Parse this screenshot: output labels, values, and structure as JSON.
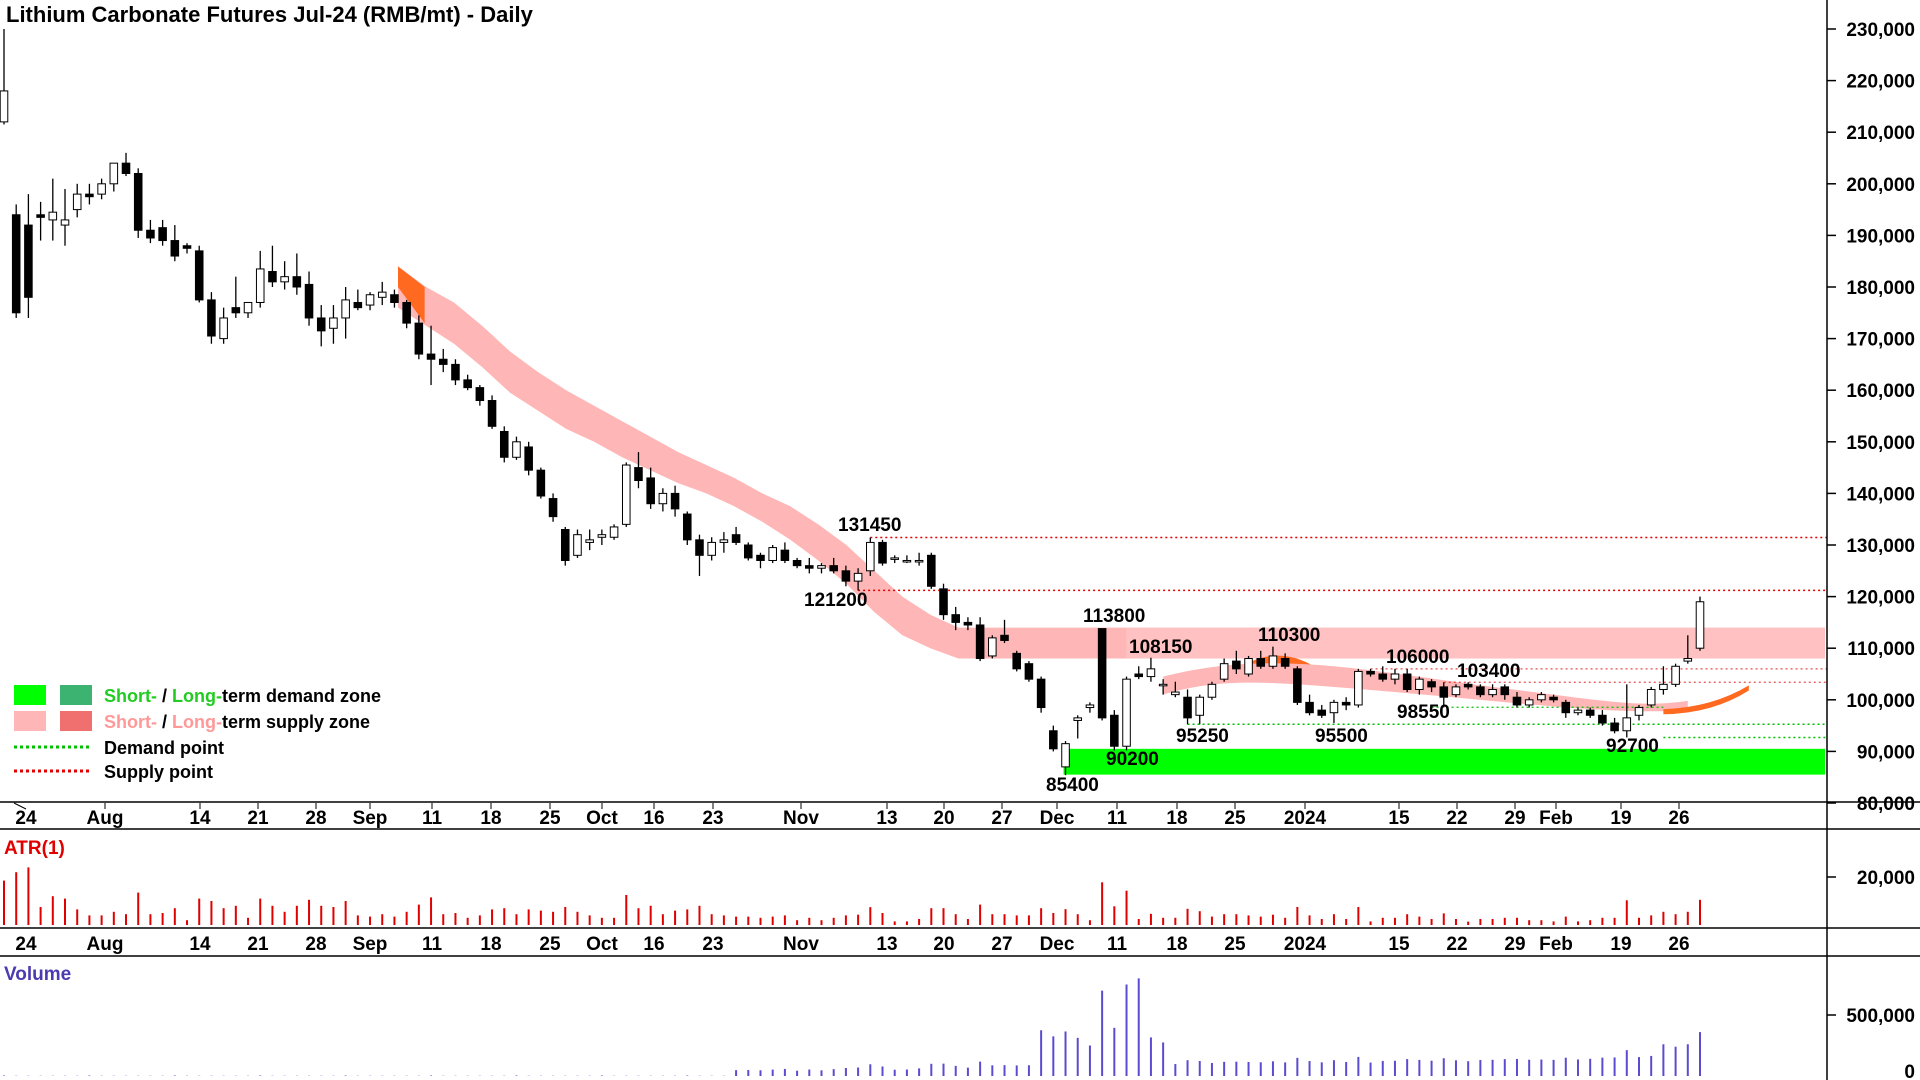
{
  "title": "Lithium Carbonate Futures Jul-24 (RMB/mt) - Daily",
  "colors": {
    "bull_body": "#ffffff",
    "bear_body": "#000000",
    "candle_outline": "#000000",
    "short_demand": "#00ff00",
    "long_demand": "#3cb371",
    "short_supply": "#ffb6b6",
    "long_supply": "#f07070",
    "supply_point": "#e00000",
    "demand_point": "#00c000",
    "atr": "#e00000",
    "volume": "#5b4bd0",
    "ribbon_orange": "#ff6a20",
    "legend_green_text": "#22cc22",
    "legend_pink_text": "#ff9999"
  },
  "x_axis_labels": [
    "24",
    "Aug",
    "14",
    "21",
    "28",
    "Sep",
    "11",
    "18",
    "25",
    "Oct",
    "16",
    "23",
    "Nov",
    "13",
    "20",
    "27",
    "Dec",
    "11",
    "18",
    "25",
    "2024",
    "15",
    "22",
    "29",
    "Feb",
    "19",
    "26"
  ],
  "legend": {
    "demand_short": "Short-",
    "demand_sep": " / ",
    "demand_long": "Long-",
    "demand_rest": "term demand zone",
    "supply_short": "Short-",
    "supply_sep": " / ",
    "supply_long": "Long-",
    "supply_rest": "term supply zone",
    "demand_point": "Demand point",
    "supply_point": "Supply point"
  },
  "price_labels": [
    "131450",
    "121200",
    "113800",
    "108150",
    "110300",
    "106000",
    "103400",
    "98550",
    "95250",
    "95500",
    "92700",
    "90200",
    "85400"
  ],
  "atr_title": "ATR(1)",
  "volume_title": "Volume",
  "chart_data": {
    "type": "candlestick",
    "title": "Lithium Carbonate Futures Jul-24 (RMB/mt) - Daily",
    "y_axis": {
      "ylim": [
        80000,
        232000
      ],
      "ticks": [
        "230,000",
        "220,000",
        "210,000",
        "200,000",
        "190,000",
        "180,000",
        "170,000",
        "160,000",
        "150,000",
        "140,000",
        "130,000",
        "120,000",
        "110,000",
        "100,000",
        "90,000",
        "80,000"
      ]
    },
    "candles": [
      [
        212000,
        230000,
        211500,
        218000
      ],
      [
        194000,
        196000,
        174000,
        175000
      ],
      [
        192000,
        198000,
        174000,
        178000
      ],
      [
        194000,
        196500,
        189000,
        193500
      ],
      [
        193000,
        201000,
        189000,
        194500
      ],
      [
        192000,
        199000,
        188000,
        193000
      ],
      [
        195000,
        200000,
        193500,
        198000
      ],
      [
        198000,
        200000,
        196000,
        197500
      ],
      [
        198000,
        201000,
        197000,
        200000
      ],
      [
        200000,
        204000,
        198500,
        204000
      ],
      [
        204000,
        206000,
        201500,
        202000
      ],
      [
        202000,
        203000,
        189500,
        191000
      ],
      [
        191000,
        193000,
        188500,
        189500
      ],
      [
        191500,
        193000,
        188000,
        189000
      ],
      [
        189000,
        192000,
        185000,
        186000
      ],
      [
        188000,
        188500,
        186500,
        187500
      ],
      [
        187000,
        188000,
        177000,
        177500
      ],
      [
        177500,
        179000,
        169000,
        170500
      ],
      [
        170000,
        176000,
        169000,
        174000
      ],
      [
        176000,
        182000,
        174000,
        175000
      ],
      [
        175000,
        177000,
        174000,
        177000
      ],
      [
        177000,
        187000,
        176000,
        183500
      ],
      [
        183000,
        188000,
        180000,
        181000
      ],
      [
        181000,
        185000,
        179500,
        182000
      ],
      [
        182000,
        186500,
        178500,
        180000
      ],
      [
        180500,
        183000,
        172500,
        174000
      ],
      [
        174000,
        176500,
        168500,
        171500
      ],
      [
        172000,
        176500,
        169000,
        174000
      ],
      [
        174000,
        180000,
        170000,
        177500
      ],
      [
        177000,
        179500,
        175500,
        176000
      ],
      [
        176500,
        179000,
        175500,
        178500
      ],
      [
        178000,
        181000,
        176500,
        179000
      ],
      [
        178500,
        179500,
        176000,
        177000
      ],
      [
        177000,
        177500,
        172000,
        173000
      ],
      [
        173000,
        174500,
        166000,
        167000
      ],
      [
        167000,
        172500,
        161000,
        166000
      ],
      [
        166000,
        168000,
        163500,
        165000
      ],
      [
        165000,
        166000,
        161000,
        162000
      ],
      [
        162000,
        163000,
        160000,
        160500
      ],
      [
        160500,
        161000,
        157000,
        158000
      ],
      [
        158000,
        159000,
        152500,
        153000
      ],
      [
        152000,
        153000,
        146000,
        147000
      ],
      [
        147000,
        151000,
        146500,
        150000
      ],
      [
        149000,
        150000,
        143500,
        144500
      ],
      [
        144500,
        145000,
        139000,
        139500
      ],
      [
        139000,
        140000,
        134500,
        135500
      ],
      [
        133000,
        133500,
        126000,
        127000
      ],
      [
        128000,
        133000,
        127500,
        132000
      ],
      [
        130500,
        133000,
        129000,
        131000
      ],
      [
        131500,
        133000,
        130000,
        132000
      ],
      [
        131500,
        134000,
        131000,
        133500
      ],
      [
        134000,
        146000,
        133500,
        145500
      ],
      [
        145000,
        148000,
        141000,
        142500
      ],
      [
        143000,
        145000,
        137000,
        138000
      ],
      [
        138000,
        141000,
        136500,
        140000
      ],
      [
        140000,
        141500,
        135500,
        137000
      ],
      [
        136000,
        136500,
        130000,
        131000
      ],
      [
        131000,
        132000,
        124000,
        128000
      ],
      [
        128000,
        131500,
        127000,
        130500
      ],
      [
        130500,
        132500,
        128500,
        131000
      ],
      [
        132000,
        133500,
        130000,
        130500
      ],
      [
        130000,
        130500,
        127000,
        127500
      ],
      [
        128000,
        128500,
        125500,
        127000
      ],
      [
        127000,
        130000,
        126500,
        129500
      ],
      [
        129000,
        130500,
        126500,
        127000
      ],
      [
        127000,
        127500,
        125500,
        126000
      ],
      [
        126000,
        127500,
        124500,
        125500
      ],
      [
        125500,
        126500,
        124500,
        126000
      ],
      [
        126000,
        127500,
        124500,
        125000
      ],
      [
        125000,
        126000,
        122000,
        123000
      ],
      [
        123000,
        125500,
        121200,
        124500
      ],
      [
        125000,
        131450,
        124000,
        130500
      ],
      [
        130500,
        131000,
        126000,
        126500
      ],
      [
        127500,
        128000,
        126500,
        127500
      ],
      [
        127000,
        128000,
        126500,
        127000
      ],
      [
        127000,
        128500,
        126000,
        127000
      ],
      [
        128000,
        128500,
        121500,
        122000
      ],
      [
        121500,
        122500,
        115500,
        116500
      ],
      [
        116500,
        118000,
        113500,
        115000
      ],
      [
        115000,
        116000,
        113500,
        114500
      ],
      [
        114500,
        116000,
        107500,
        108000
      ],
      [
        108500,
        112500,
        108000,
        112000
      ],
      [
        112500,
        115500,
        111000,
        111500
      ],
      [
        109000,
        109500,
        105500,
        106000
      ],
      [
        107000,
        107500,
        103500,
        104000
      ],
      [
        104000,
        104500,
        97500,
        98500
      ],
      [
        94000,
        95000,
        90000,
        90500
      ],
      [
        87000,
        92000,
        85400,
        91500
      ],
      [
        96000,
        97000,
        92500,
        96500
      ],
      [
        98500,
        99500,
        97500,
        99000
      ],
      [
        113800,
        113800,
        96000,
        96500
      ],
      [
        97000,
        98000,
        90200,
        91000
      ],
      [
        91000,
        104500,
        90200,
        104000
      ],
      [
        105000,
        106500,
        104000,
        104500
      ],
      [
        104500,
        108150,
        103500,
        106000
      ],
      [
        103000,
        104000,
        101000,
        103000
      ],
      [
        101000,
        103500,
        100500,
        101500
      ],
      [
        100500,
        102000,
        95250,
        96500
      ],
      [
        97000,
        101000,
        95250,
        100500
      ],
      [
        100500,
        103500,
        100000,
        103000
      ],
      [
        104000,
        108000,
        103500,
        107000
      ],
      [
        107500,
        109500,
        105000,
        106000
      ],
      [
        105000,
        108500,
        104500,
        108000
      ],
      [
        108000,
        109500,
        106000,
        106500
      ],
      [
        106500,
        110300,
        106000,
        108500
      ],
      [
        108000,
        109000,
        106000,
        106500
      ],
      [
        106000,
        106500,
        99000,
        99500
      ],
      [
        99500,
        101000,
        97000,
        97500
      ],
      [
        98000,
        99000,
        96500,
        97000
      ],
      [
        97500,
        100000,
        95500,
        99500
      ],
      [
        99500,
        100500,
        98000,
        99000
      ],
      [
        99000,
        106000,
        98500,
        105500
      ],
      [
        105500,
        106000,
        104500,
        105000
      ],
      [
        105000,
        106500,
        103500,
        104000
      ],
      [
        104000,
        106000,
        103000,
        105000
      ],
      [
        105000,
        106000,
        101500,
        102000
      ],
      [
        102000,
        104500,
        101000,
        104000
      ],
      [
        103500,
        104000,
        101500,
        102500
      ],
      [
        102500,
        103400,
        98550,
        100500
      ],
      [
        101000,
        103000,
        100500,
        102500
      ],
      [
        103000,
        103400,
        102000,
        102500
      ],
      [
        102500,
        103000,
        100500,
        101000
      ],
      [
        101000,
        103000,
        100500,
        102000
      ],
      [
        102500,
        103000,
        100000,
        101000
      ],
      [
        100500,
        101500,
        98500,
        99000
      ],
      [
        99000,
        100500,
        98500,
        100000
      ],
      [
        100000,
        101500,
        99500,
        101000
      ],
      [
        100500,
        101000,
        99500,
        100000
      ],
      [
        99500,
        100000,
        96500,
        97500
      ],
      [
        97500,
        98500,
        97000,
        98000
      ],
      [
        98000,
        98500,
        96500,
        97000
      ],
      [
        97000,
        98000,
        95000,
        95500
      ],
      [
        95500,
        96500,
        93500,
        94000
      ],
      [
        94000,
        103000,
        92700,
        96500
      ],
      [
        97000,
        99000,
        96000,
        98500
      ],
      [
        99000,
        102500,
        98500,
        102000
      ],
      [
        102000,
        106500,
        101000,
        103000
      ],
      [
        103000,
        107000,
        102500,
        106500
      ],
      [
        107500,
        112500,
        107000,
        108000
      ],
      [
        110000,
        120000,
        109500,
        119000
      ]
    ],
    "short_term_supply_ribbon": [
      [
        184000,
        176000
      ],
      [
        180000,
        172500
      ],
      [
        177000,
        169000
      ],
      [
        172500,
        164500
      ],
      [
        167500,
        159500
      ],
      [
        163500,
        156000
      ],
      [
        160000,
        152500
      ],
      [
        157000,
        150000
      ],
      [
        154000,
        147000
      ],
      [
        151000,
        144500
      ],
      [
        148000,
        142000
      ],
      [
        145500,
        140000
      ],
      [
        143000,
        137500
      ],
      [
        140000,
        134500
      ],
      [
        137500,
        131000
      ],
      [
        134000,
        127000
      ],
      [
        130000,
        122500
      ],
      [
        125000,
        117000
      ],
      [
        120000,
        112500
      ],
      [
        116500,
        110000
      ],
      [
        114000,
        108000
      ],
      [
        114000,
        108000
      ],
      [
        114000,
        108000
      ],
      [
        114000,
        108000
      ],
      [
        114000,
        108000
      ],
      [
        114000,
        108000
      ],
      [
        114000,
        108000
      ]
    ],
    "long_term_supply_zone": [
      108000,
      114000
    ],
    "long_supply_orange_segments": [
      {
        "x_start": 0,
        "x_end": 1,
        "top": [
          184000,
          180000
        ],
        "bottom": [
          180000,
          173000
        ]
      }
    ],
    "short_term_demand_zone": [
      85500,
      90500
    ],
    "supply_points": [
      131450,
      121200
    ],
    "demand_points": [
      95250,
      92700
    ],
    "atr": {
      "ytick": "20,000",
      "ylim": [
        0,
        27000
      ]
    },
    "volume": {
      "ytick_top": "500,000",
      "ytick_bottom": "0",
      "ylim": [
        0,
        900000
      ]
    }
  }
}
